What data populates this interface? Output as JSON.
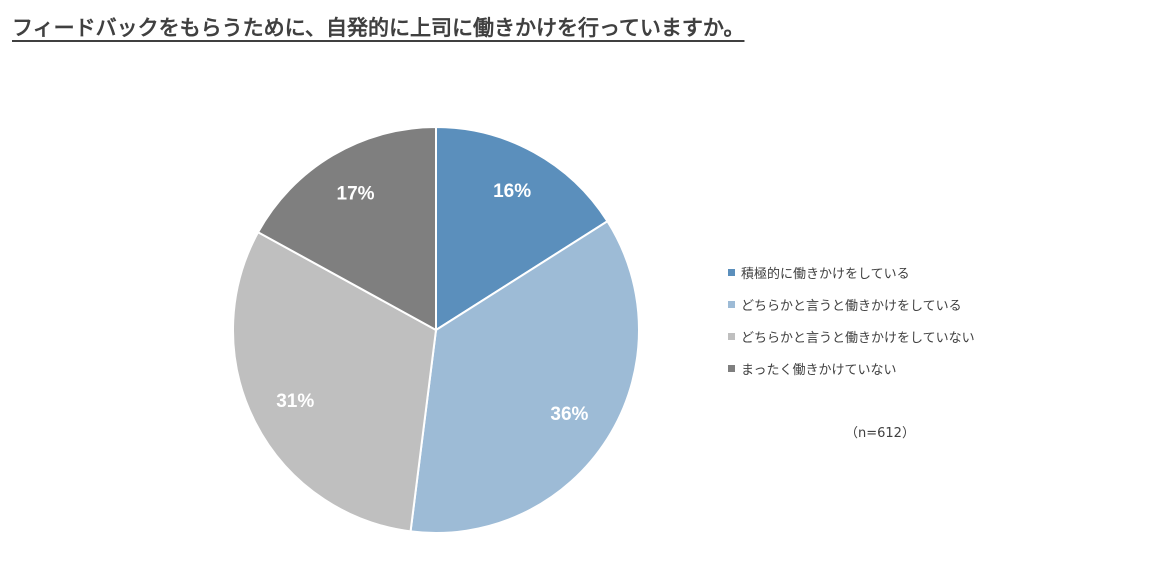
{
  "title": "フィードバックをもらうために、自発的に上司に働きかけを行っていますか。",
  "note": "（n=612）",
  "chart_data": {
    "type": "pie",
    "categories": [
      "積極的に働きかけをしている",
      "どちらかと言うと働きかけをしている",
      "どちらかと言うと働きかけをしていない",
      "まったく働きかけていない"
    ],
    "values": [
      16,
      36,
      31,
      17
    ],
    "labels": [
      "16%",
      "36%",
      "31%",
      "17%"
    ],
    "colors": [
      "#5b8fbc",
      "#9dbbd6",
      "#bfbfbf",
      "#7f7f7f"
    ],
    "legend_position": "right"
  }
}
